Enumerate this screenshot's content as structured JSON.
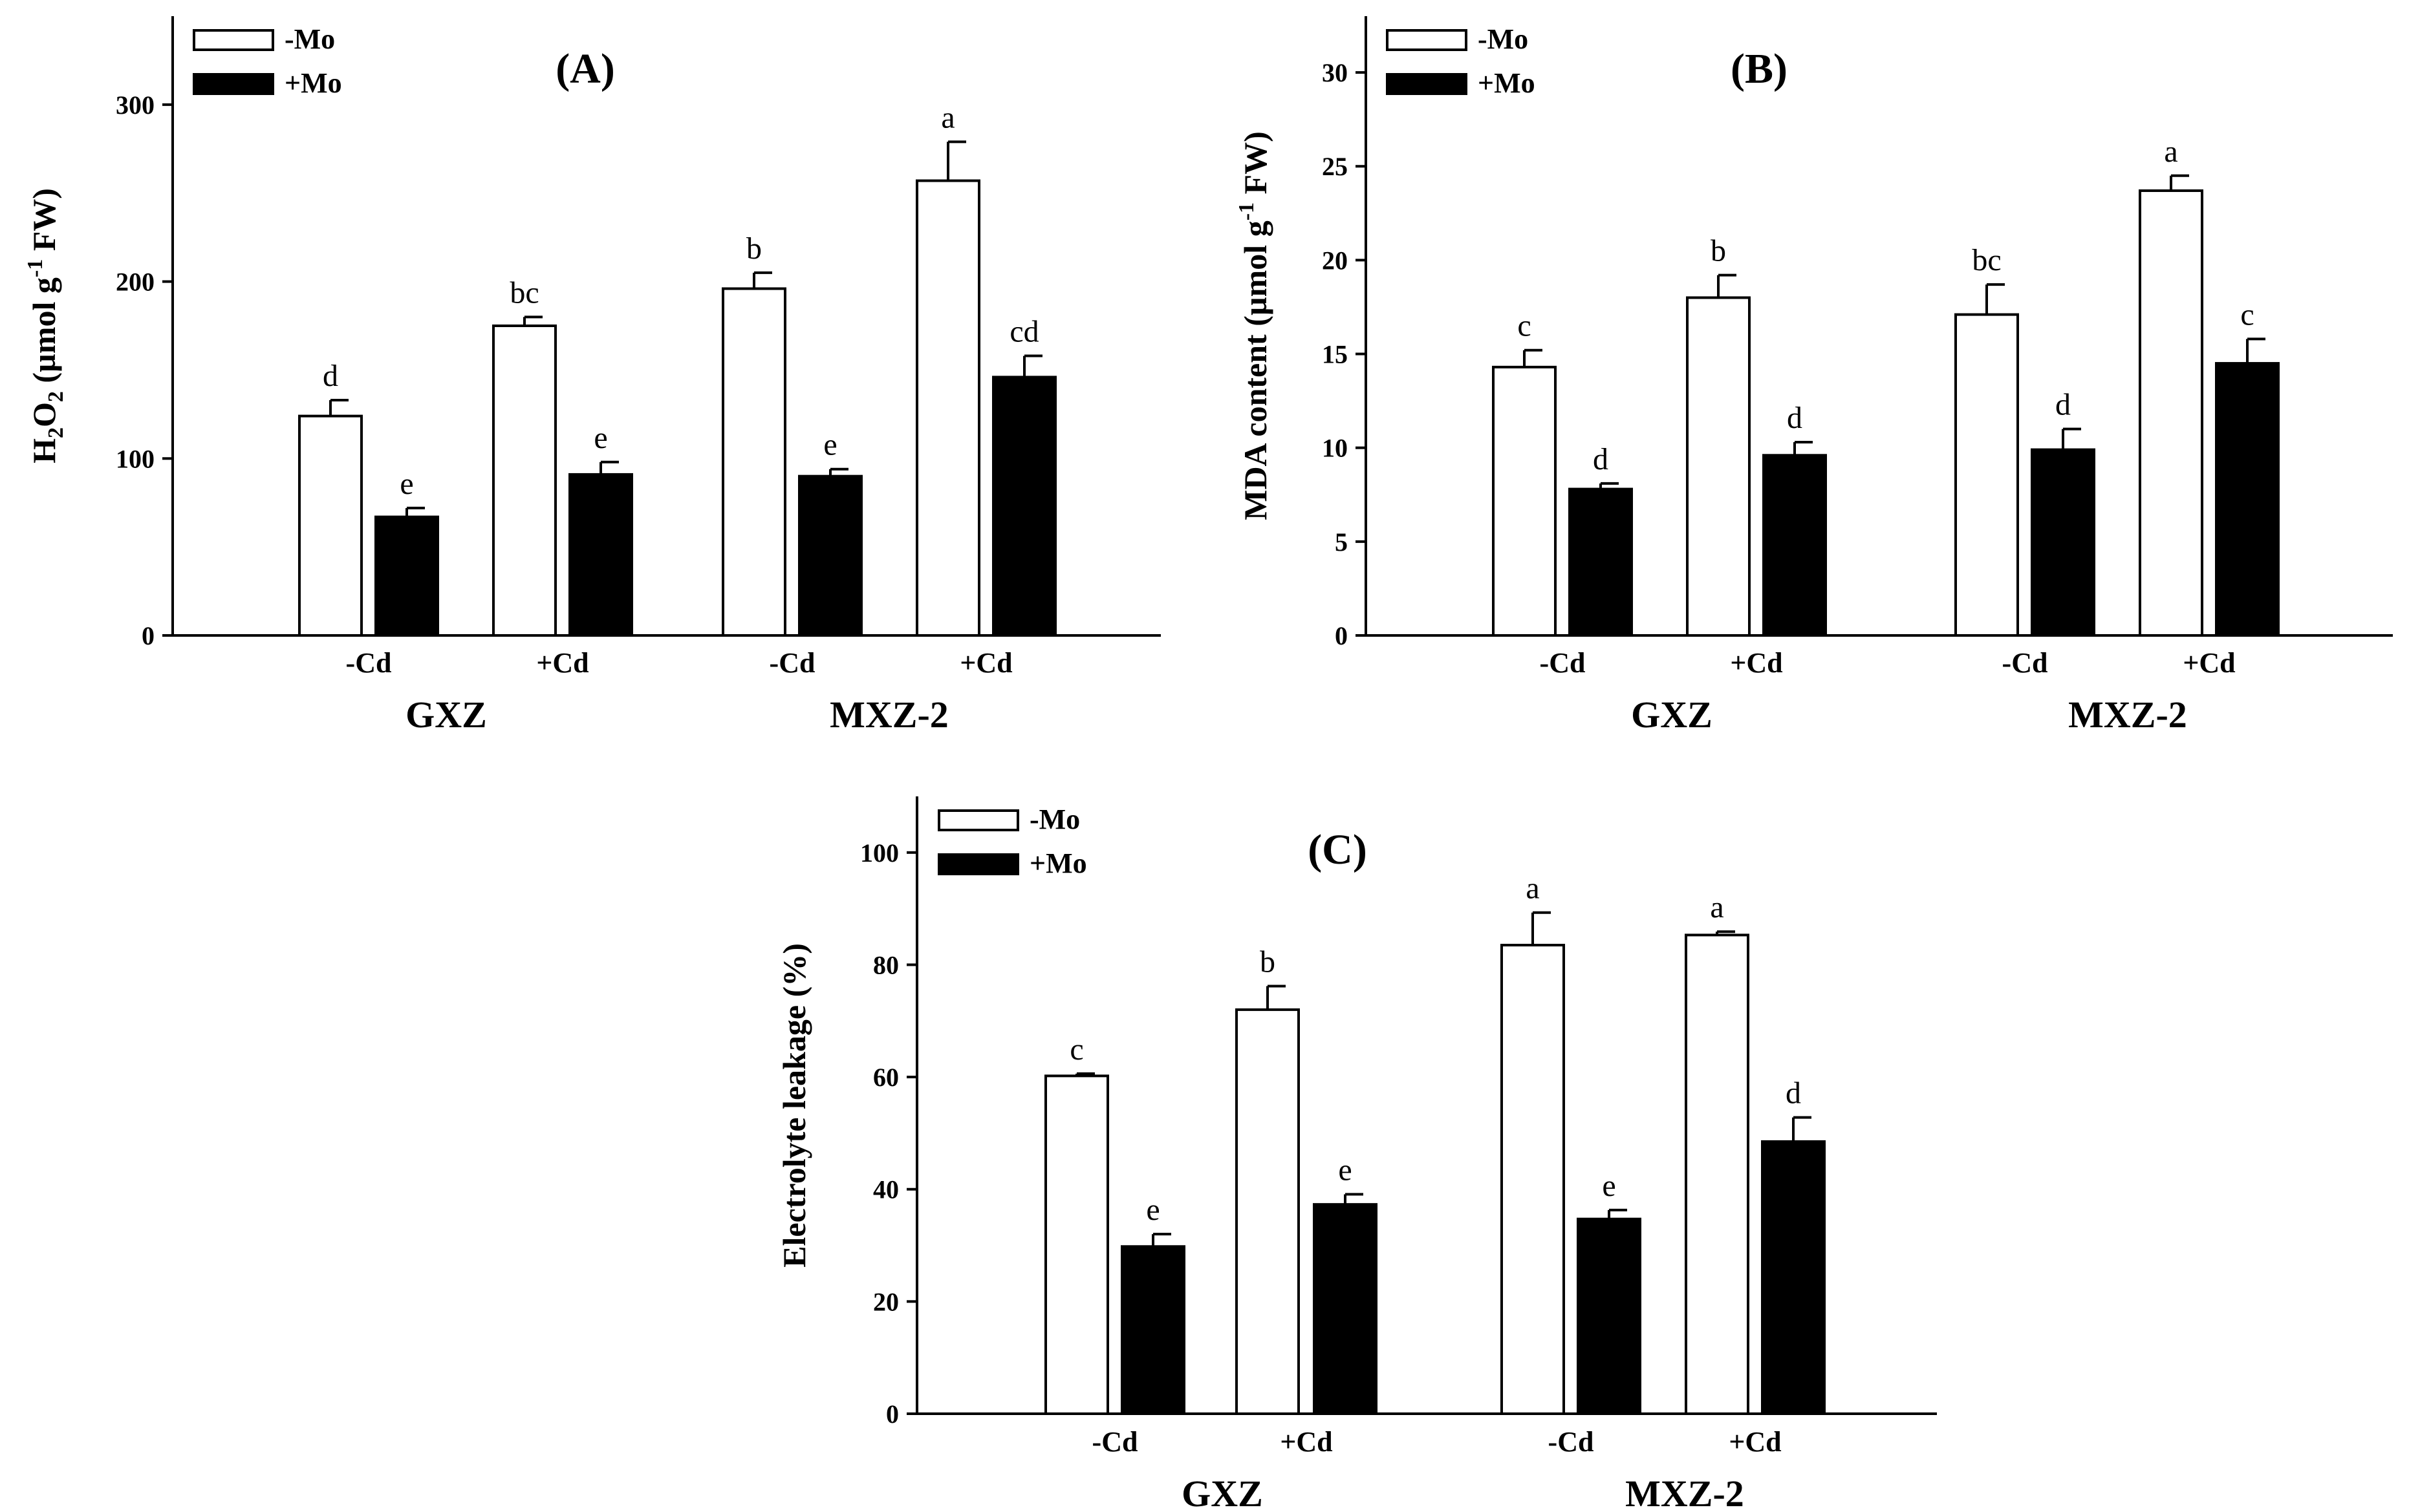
{
  "figure": {
    "legend": {
      "open_label": "-Mo",
      "filled_label": "+Mo"
    },
    "group_labels": [
      "GXZ",
      "MXZ-2"
    ],
    "cd_labels": [
      "-Cd",
      "+Cd"
    ]
  },
  "chart_data": [
    {
      "type": "bar",
      "title": "(A)",
      "ylabel": "H2O2 (µmol g-1 FW)",
      "ylabel_parts": {
        "h": "H",
        "sub1": "2",
        "o": "O",
        "sub2": "2",
        "unit_pre": " (µmol g",
        "sup": "-1",
        "unit_post": " FW)"
      },
      "xlabel": "",
      "ylim": [
        0,
        350
      ],
      "yticks": [
        0,
        100,
        200,
        300
      ],
      "groups": [
        "GXZ",
        "MXZ-2"
      ],
      "categories": [
        "-Cd",
        "+Cd",
        "-Cd",
        "+Cd"
      ],
      "series": [
        {
          "name": "-Mo",
          "values": [
            124,
            175,
            196,
            257
          ],
          "errors": [
            9,
            5,
            9,
            22
          ],
          "letters": [
            "d",
            "bc",
            "b",
            "a"
          ]
        },
        {
          "name": "+Mo",
          "values": [
            67,
            91,
            90,
            146
          ],
          "errors": [
            5,
            7,
            4,
            12
          ],
          "letters": [
            "e",
            "e",
            "e",
            "cd"
          ]
        }
      ]
    },
    {
      "type": "bar",
      "title": "(B)",
      "ylabel": "MDA content (µmol g-1 FW)",
      "ylabel_parts": {
        "main": "MDA content (µmol g",
        "sup": "-1",
        "post": " FW)"
      },
      "xlabel": "",
      "ylim": [
        0,
        33
      ],
      "yticks": [
        0,
        5,
        10,
        15,
        20,
        25,
        30
      ],
      "groups": [
        "GXZ",
        "MXZ-2"
      ],
      "categories": [
        "-Cd",
        "+Cd",
        "-Cd",
        "+Cd"
      ],
      "series": [
        {
          "name": "-Mo",
          "values": [
            14.3,
            18.0,
            17.1,
            23.7
          ],
          "errors": [
            0.9,
            1.2,
            1.6,
            0.8
          ],
          "letters": [
            "c",
            "b",
            "bc",
            "a"
          ]
        },
        {
          "name": "+Mo",
          "values": [
            7.8,
            9.6,
            9.9,
            14.5
          ],
          "errors": [
            0.3,
            0.7,
            1.1,
            1.3
          ],
          "letters": [
            "d",
            "d",
            "d",
            "c"
          ]
        }
      ]
    },
    {
      "type": "bar",
      "title": "(C)",
      "ylabel": "Electrolyte leakage (%)",
      "xlabel": "",
      "ylim": [
        0,
        110
      ],
      "yticks": [
        0,
        20,
        40,
        60,
        80,
        100
      ],
      "groups": [
        "GXZ",
        "MXZ-2"
      ],
      "categories": [
        "-Cd",
        "+Cd",
        "-Cd",
        "+Cd"
      ],
      "series": [
        {
          "name": "-Mo",
          "values": [
            60.2,
            72.0,
            83.5,
            85.3
          ],
          "errors": [
            0.4,
            4.2,
            5.8,
            0.6
          ],
          "letters": [
            "c",
            "b",
            "a",
            "a"
          ]
        },
        {
          "name": "+Mo",
          "values": [
            29.8,
            37.3,
            34.7,
            48.5
          ],
          "errors": [
            2.2,
            1.8,
            1.6,
            4.3
          ],
          "letters": [
            "e",
            "e",
            "e",
            "d"
          ]
        }
      ]
    }
  ]
}
